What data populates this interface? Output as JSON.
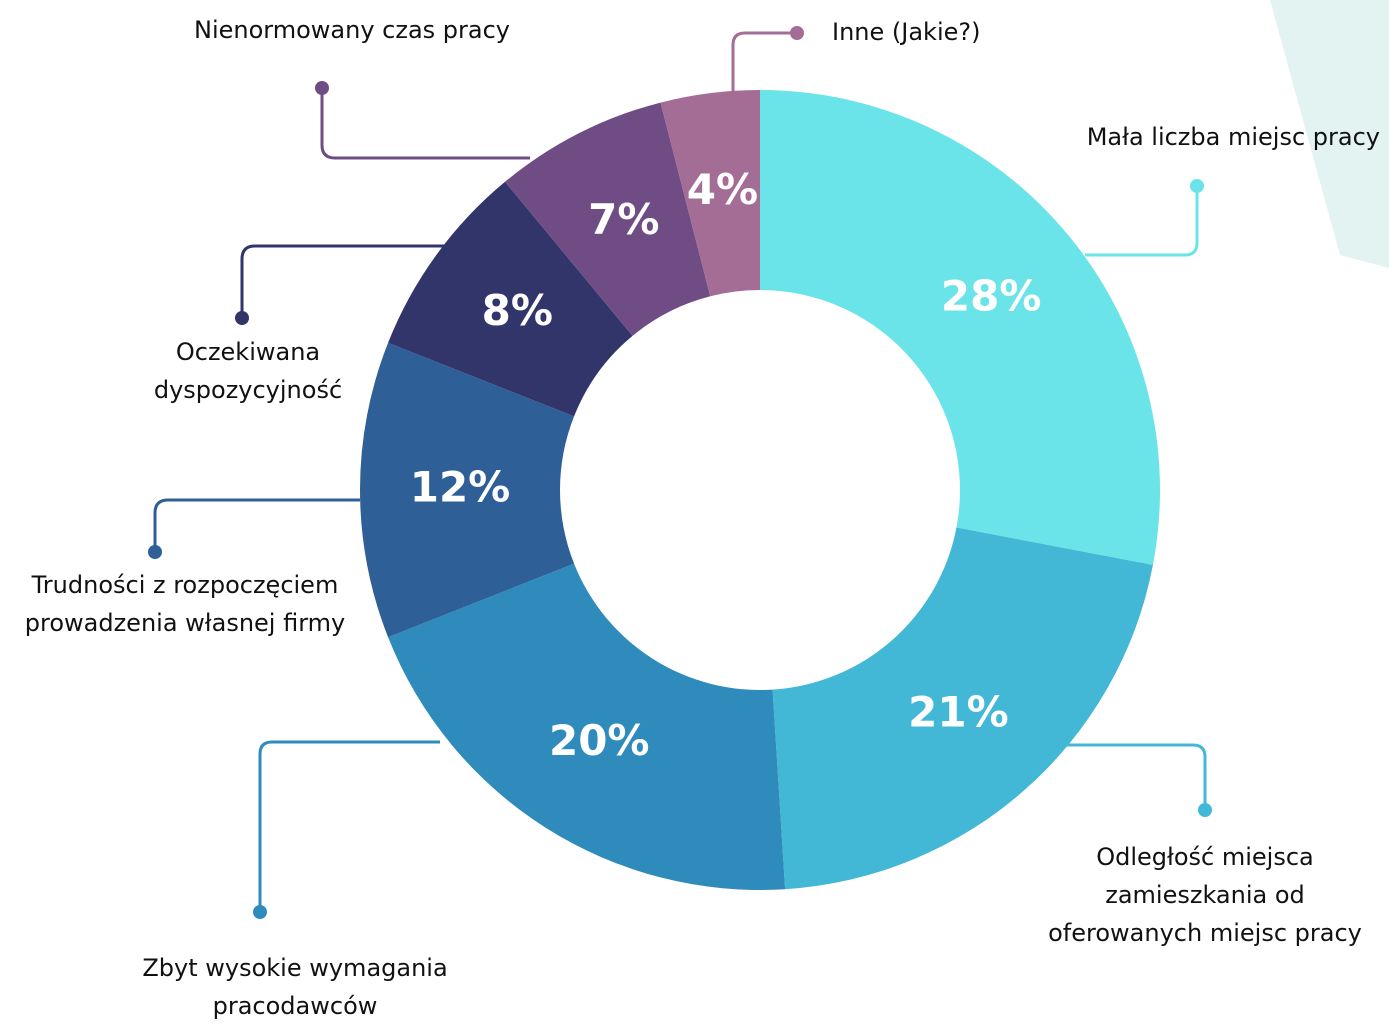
{
  "chart_data": {
    "type": "donut",
    "categories": [
      "Mała liczba miejsc pracy",
      "Odległość miejsca\nzamieszkania od\noferowanych miejsc pracy",
      "Zbyt wysokie wymagania\npracodawców",
      "Trudności z rozpoczęciem\nprowadzenia własnej firmy",
      "Oczekiwana\ndyspozycyjność",
      "Nienormowany czas pracy",
      "Inne (Jakie?)"
    ],
    "values": [
      28,
      21,
      20,
      12,
      8,
      7,
      4
    ],
    "value_labels": [
      "28%",
      "21%",
      "20%",
      "12%",
      "8%",
      "7%",
      "4%"
    ],
    "colors": [
      "#6ae4e8",
      "#42b8d6",
      "#2e8bbb",
      "#2e5f97",
      "#32356a",
      "#704c85",
      "#a46d96"
    ]
  }
}
